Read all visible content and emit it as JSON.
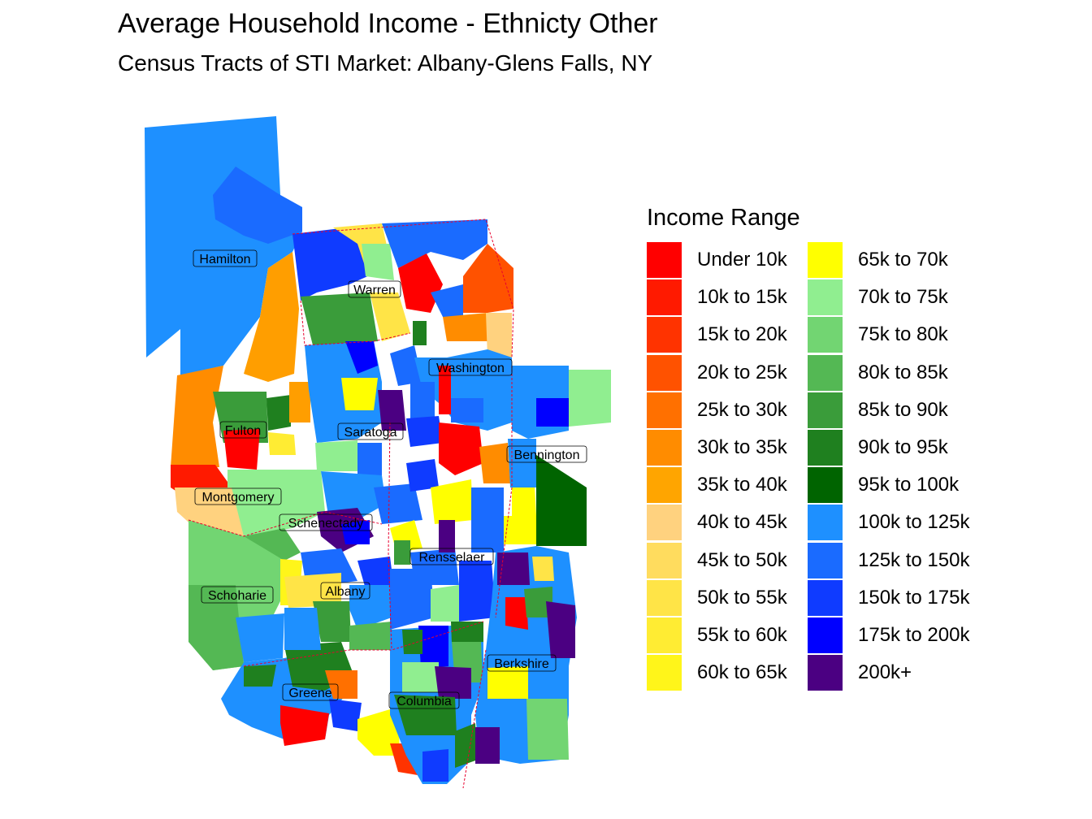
{
  "title": "Average Household Income - Ethnicty Other",
  "subtitle": "Census Tracts of STI Market: Albany-Glens Falls, NY",
  "legend": {
    "title": "Income Range",
    "items": [
      {
        "label": "Under 10k",
        "color": "#FF0000"
      },
      {
        "label": "10k to 15k",
        "color": "#FF1A00"
      },
      {
        "label": "15k to 20k",
        "color": "#FF3300"
      },
      {
        "label": "20k to 25k",
        "color": "#FF5200"
      },
      {
        "label": "25k to 30k",
        "color": "#FF7000"
      },
      {
        "label": "30k to 35k",
        "color": "#FF8C00"
      },
      {
        "label": "35k to 40k",
        "color": "#FFA500"
      },
      {
        "label": "40k to 45k",
        "color": "#FFD27F"
      },
      {
        "label": "45k to 50k",
        "color": "#FFDC5E"
      },
      {
        "label": "50k to 55k",
        "color": "#FFE447"
      },
      {
        "label": "55k to 60k",
        "color": "#FFEC33"
      },
      {
        "label": "60k to 65k",
        "color": "#FFF51A"
      },
      {
        "label": "65k to 70k",
        "color": "#FFFF00"
      },
      {
        "label": "70k to 75k",
        "color": "#90EE90"
      },
      {
        "label": "75k to 80k",
        "color": "#72D572"
      },
      {
        "label": "80k to 85k",
        "color": "#54B854"
      },
      {
        "label": "85k to 90k",
        "color": "#3A9C3A"
      },
      {
        "label": "90k to 95k",
        "color": "#1F801F"
      },
      {
        "label": "95k to 100k",
        "color": "#006400"
      },
      {
        "label": "100k to 125k",
        "color": "#1E90FF"
      },
      {
        "label": "125k to 150k",
        "color": "#1A6BFF"
      },
      {
        "label": "150k to 175k",
        "color": "#0F3BFF"
      },
      {
        "label": "175k to 200k",
        "color": "#0000FF"
      },
      {
        "label": "200k+",
        "color": "#4B0082"
      }
    ]
  },
  "counties": [
    {
      "name": "Hamilton"
    },
    {
      "name": "Warren"
    },
    {
      "name": "Washington"
    },
    {
      "name": "Fulton"
    },
    {
      "name": "Saratoga"
    },
    {
      "name": "Bennington"
    },
    {
      "name": "Montgomery"
    },
    {
      "name": "Schenectady"
    },
    {
      "name": "Rensselaer"
    },
    {
      "name": "Schoharie"
    },
    {
      "name": "Albany"
    },
    {
      "name": "Berkshire"
    },
    {
      "name": "Greene"
    },
    {
      "name": "Columbia"
    }
  ]
}
